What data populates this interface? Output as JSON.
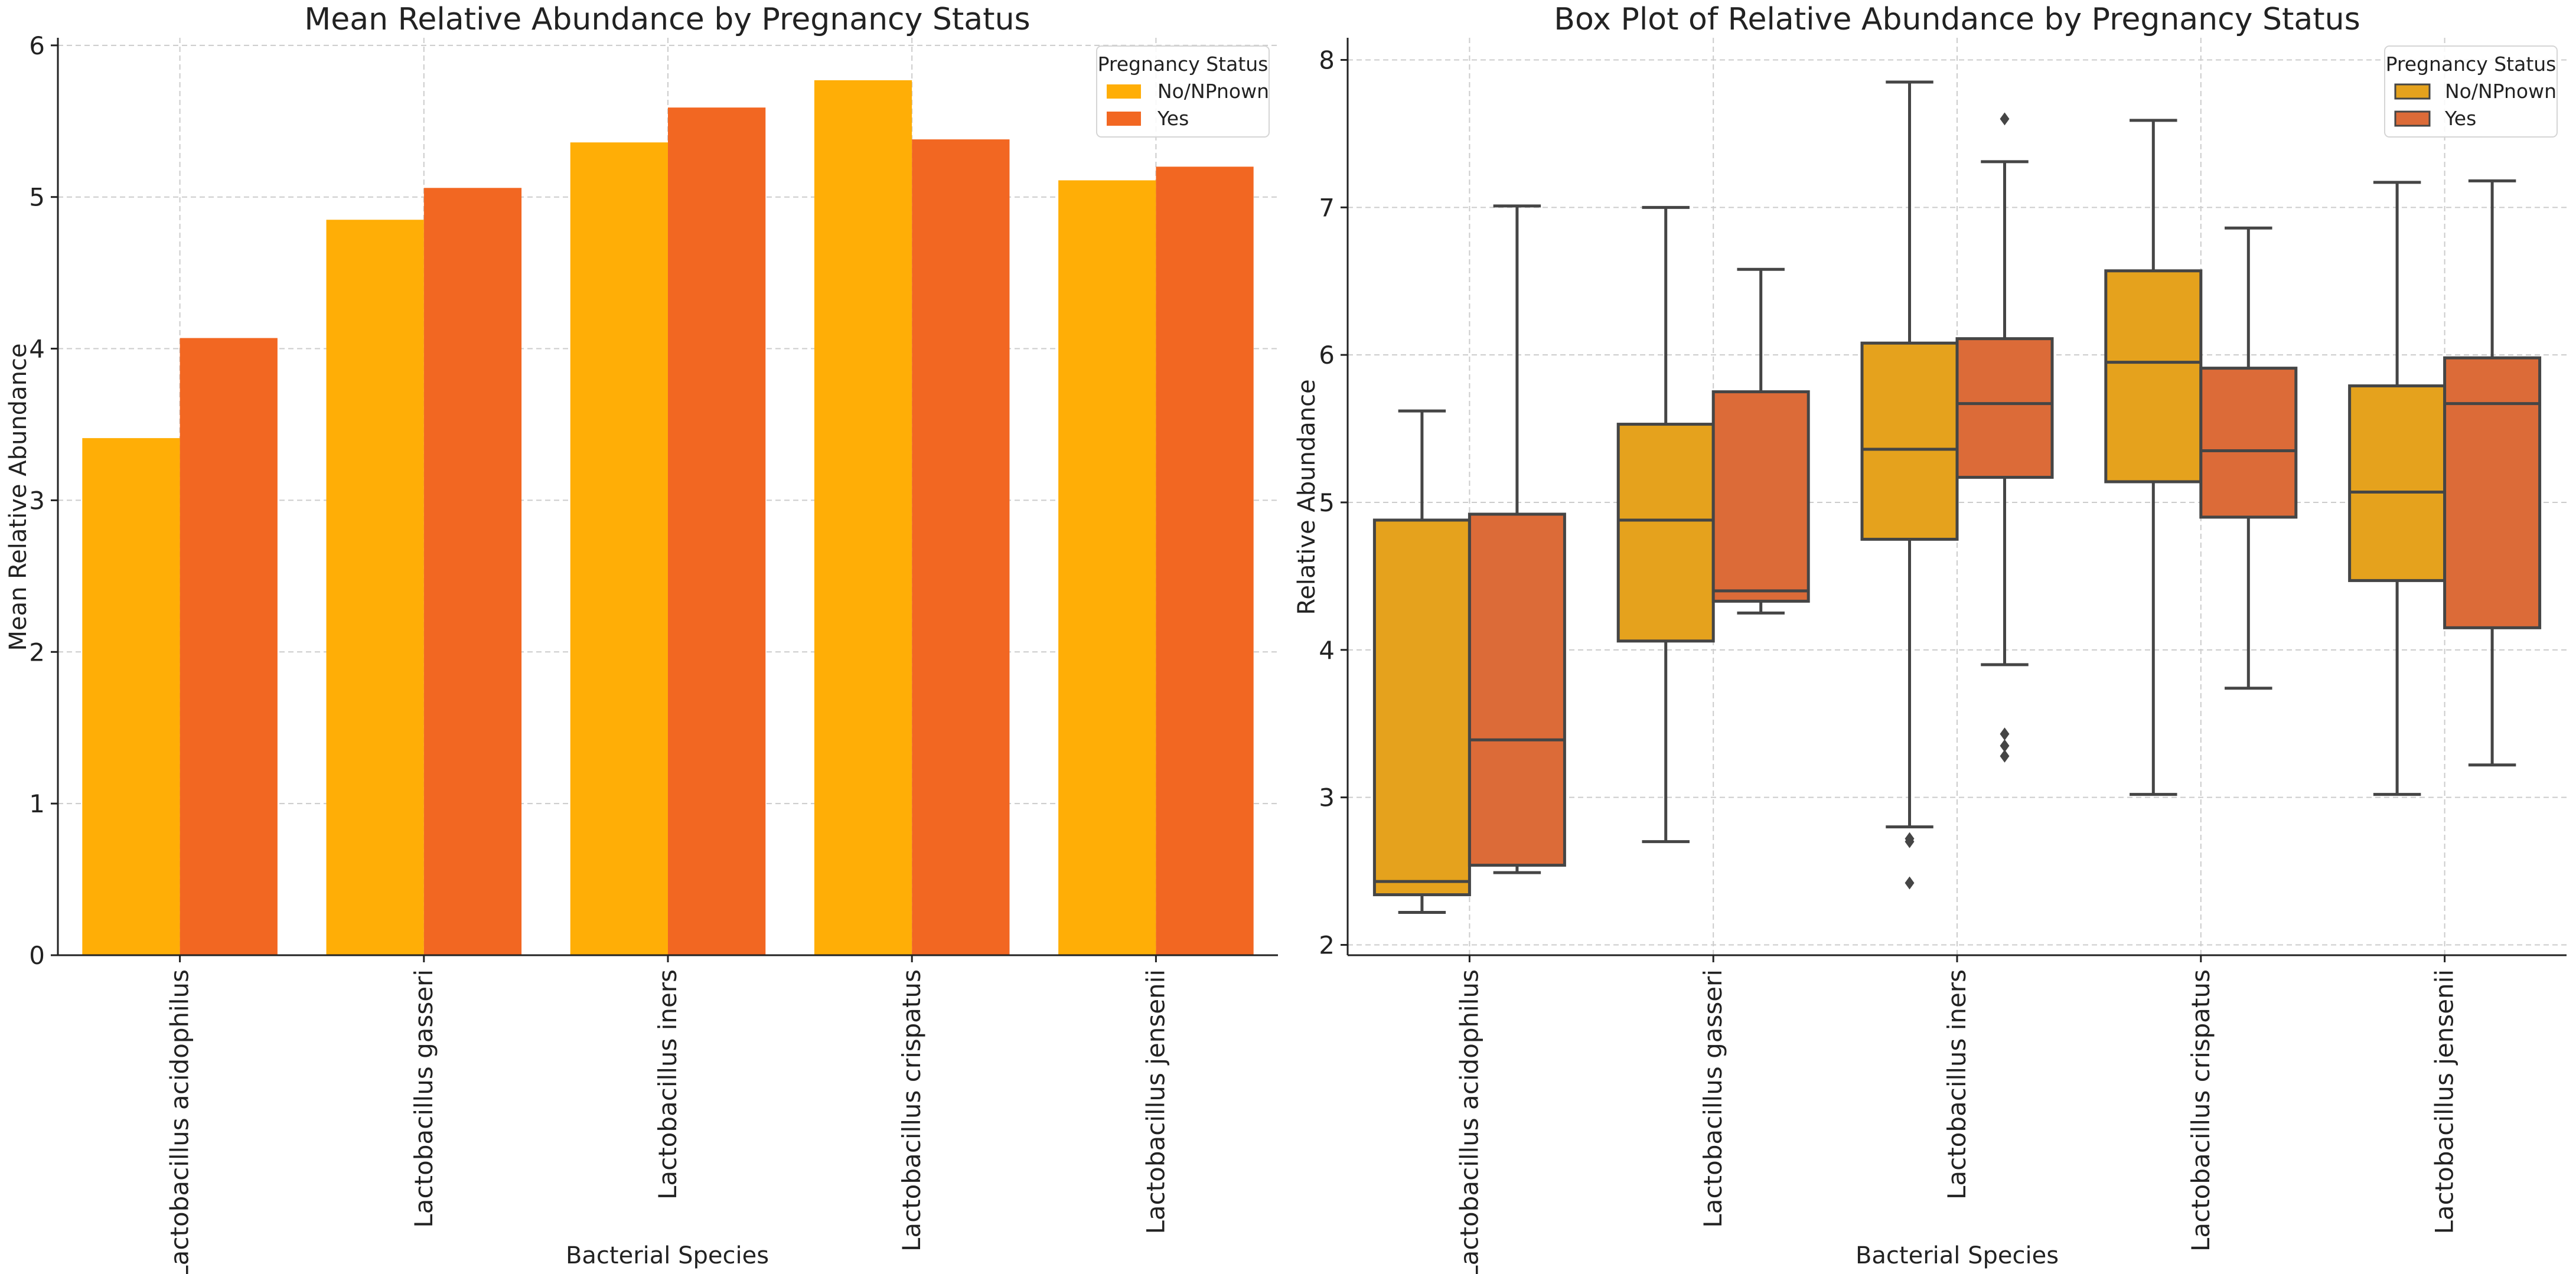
{
  "chart_data": [
    {
      "type": "bar",
      "title": "Mean Relative Abundance by Pregnancy Status",
      "xlabel": "Bacterial Species",
      "ylabel": "Mean Relative Abundance",
      "ylim": [
        0,
        6.05
      ],
      "yticks": [
        "0",
        "1",
        "2",
        "3",
        "4",
        "5",
        "6"
      ],
      "grid": true,
      "categories": [
        "Lactobacillus acidophilus",
        "Lactobacillus gasseri",
        "Lactobacillus iners",
        "Lactobacillus crispatus",
        "Lactobacillus jensenii"
      ],
      "legend": {
        "title": "Pregnancy Status",
        "position": "top-right"
      },
      "series": [
        {
          "name": "No/NPnown",
          "color": "#FFAE06",
          "values": [
            3.41,
            4.85,
            5.36,
            5.77,
            5.11
          ]
        },
        {
          "name": "Yes",
          "color": "#F26722",
          "values": [
            4.07,
            5.06,
            5.59,
            5.38,
            5.2
          ]
        }
      ]
    },
    {
      "type": "box",
      "title": "Box Plot of Relative Abundance by Pregnancy Status",
      "xlabel": "Bacterial Species",
      "ylabel": "Relative Abundance",
      "ylim": [
        1.93,
        8.15
      ],
      "yticks": [
        "2",
        "3",
        "4",
        "5",
        "6",
        "7",
        "8"
      ],
      "grid": true,
      "categories": [
        "Lactobacillus acidophilus",
        "Lactobacillus gasseri",
        "Lactobacillus iners",
        "Lactobacillus crispatus",
        "Lactobacillus jensenii"
      ],
      "legend": {
        "title": "Pregnancy Status",
        "position": "top-right"
      },
      "series": [
        {
          "name": "No/NPnown",
          "color": "#E5A21D",
          "boxes": [
            {
              "whislo": 2.22,
              "q1": 2.34,
              "med": 2.43,
              "q3": 4.88,
              "whishi": 5.62,
              "fliers": []
            },
            {
              "whislo": 2.7,
              "q1": 4.06,
              "med": 4.88,
              "q3": 5.53,
              "whishi": 7.0,
              "fliers": []
            },
            {
              "whislo": 2.8,
              "q1": 4.75,
              "med": 5.36,
              "q3": 6.08,
              "whishi": 7.85,
              "fliers": [
                2.7,
                2.72,
                2.42
              ]
            },
            {
              "whislo": 3.02,
              "q1": 5.14,
              "med": 5.95,
              "q3": 6.57,
              "whishi": 7.59,
              "fliers": []
            },
            {
              "whislo": 3.02,
              "q1": 4.47,
              "med": 5.07,
              "q3": 5.79,
              "whishi": 7.17,
              "fliers": []
            }
          ]
        },
        {
          "name": "Yes",
          "color": "#DC6B38",
          "boxes": [
            {
              "whislo": 2.49,
              "q1": 2.54,
              "med": 3.39,
              "q3": 4.92,
              "whishi": 7.01,
              "fliers": []
            },
            {
              "whislo": 4.25,
              "q1": 4.33,
              "med": 4.4,
              "q3": 5.75,
              "whishi": 6.58,
              "fliers": []
            },
            {
              "whislo": 3.9,
              "q1": 5.17,
              "med": 5.67,
              "q3": 6.11,
              "whishi": 7.31,
              "fliers": [
                7.6,
                3.43,
                3.35,
                3.28
              ]
            },
            {
              "whislo": 3.74,
              "q1": 4.9,
              "med": 5.35,
              "q3": 5.91,
              "whishi": 6.86,
              "fliers": []
            },
            {
              "whislo": 3.22,
              "q1": 4.15,
              "med": 5.67,
              "q3": 5.98,
              "whishi": 7.18,
              "fliers": []
            }
          ]
        }
      ]
    }
  ]
}
